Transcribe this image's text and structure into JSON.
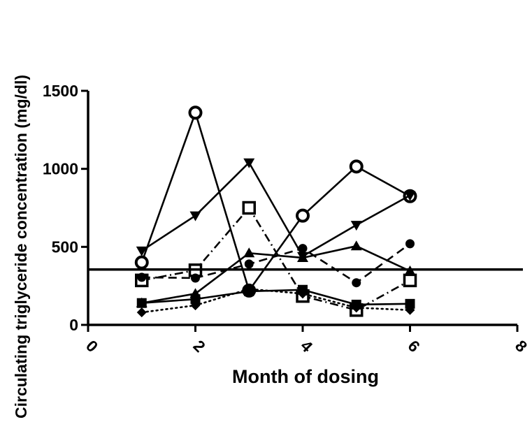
{
  "chart_data": {
    "type": "line",
    "title": "",
    "xlabel": "Month of dosing",
    "ylabel": "Circulating triglyceride concentration (mg/dl)",
    "xlim": [
      0,
      8
    ],
    "ylim": [
      0,
      1500
    ],
    "x_ticks": [
      "0",
      "2",
      "4",
      "6",
      "8"
    ],
    "y_ticks": [
      "0",
      "500",
      "1000",
      "1500"
    ],
    "x_tick_values": [
      0,
      2,
      4,
      6,
      8
    ],
    "y_tick_values": [
      0,
      500,
      1000,
      1500
    ],
    "grid": false,
    "reference_line": {
      "y": 355
    },
    "x": [
      1,
      2,
      3,
      4,
      5,
      6
    ],
    "series": [
      {
        "name": "open-circle",
        "marker": "open-circle",
        "dash": "solid",
        "values": [
          400,
          1360,
          220,
          700,
          1015,
          825
        ]
      },
      {
        "name": "down-triangle",
        "marker": "down-triangle",
        "dash": "solid",
        "values": [
          475,
          700,
          1040,
          440,
          640,
          830
        ]
      },
      {
        "name": "open-square",
        "marker": "open-square",
        "dash": "dash-dot",
        "values": [
          285,
          350,
          750,
          185,
          95,
          285
        ]
      },
      {
        "name": "filled-circle",
        "marker": "filled-circle",
        "dash": "dashed",
        "values": [
          305,
          300,
          390,
          490,
          270,
          520
        ]
      },
      {
        "name": "up-triangle",
        "marker": "up-triangle",
        "dash": "solid",
        "values": [
          140,
          200,
          460,
          430,
          505,
          345
        ]
      },
      {
        "name": "filled-square",
        "marker": "filled-square",
        "dash": "solid",
        "values": [
          140,
          165,
          215,
          225,
          130,
          135
        ]
      },
      {
        "name": "diamond",
        "marker": "diamond",
        "dash": "dotted",
        "values": [
          80,
          125,
          230,
          200,
          110,
          95
        ]
      }
    ]
  }
}
